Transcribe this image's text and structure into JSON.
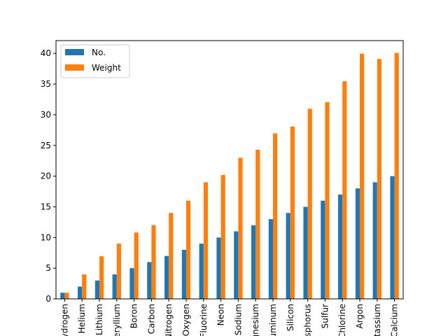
{
  "chart_data": {
    "type": "bar",
    "categories": [
      "Hydrogen",
      "Helium",
      "Lithium",
      "Beryllium",
      "Boron",
      "Carbon",
      "Nitrogen",
      "Oxygen",
      "Fluorine",
      "Neon",
      "Sodium",
      "Magnesium",
      "Aluminum",
      "Silicon",
      "Phosphorus",
      "Sulfur",
      "Chlorine",
      "Argon",
      "Potassium",
      "Calcium"
    ],
    "series": [
      {
        "name": "No.",
        "color": "#1f77b4",
        "values": [
          1,
          2,
          3,
          4,
          5,
          6,
          7,
          8,
          9,
          10,
          11,
          12,
          13,
          14,
          15,
          16,
          17,
          18,
          19,
          20
        ]
      },
      {
        "name": "Weight",
        "color": "#ff7f0e",
        "values": [
          1.008,
          4.003,
          6.94,
          9.012,
          10.81,
          12.011,
          14.007,
          15.999,
          18.998,
          20.18,
          22.99,
          24.305,
          26.982,
          28.085,
          30.974,
          32.06,
          35.45,
          39.948,
          39.098,
          40.078
        ]
      }
    ],
    "yticks": [
      0,
      5,
      10,
      15,
      20,
      25,
      30,
      35,
      40
    ],
    "ylim": [
      0,
      42.08
    ],
    "title": "",
    "xlabel": "",
    "ylabel": "",
    "legend": "top-left",
    "grid": false
  }
}
